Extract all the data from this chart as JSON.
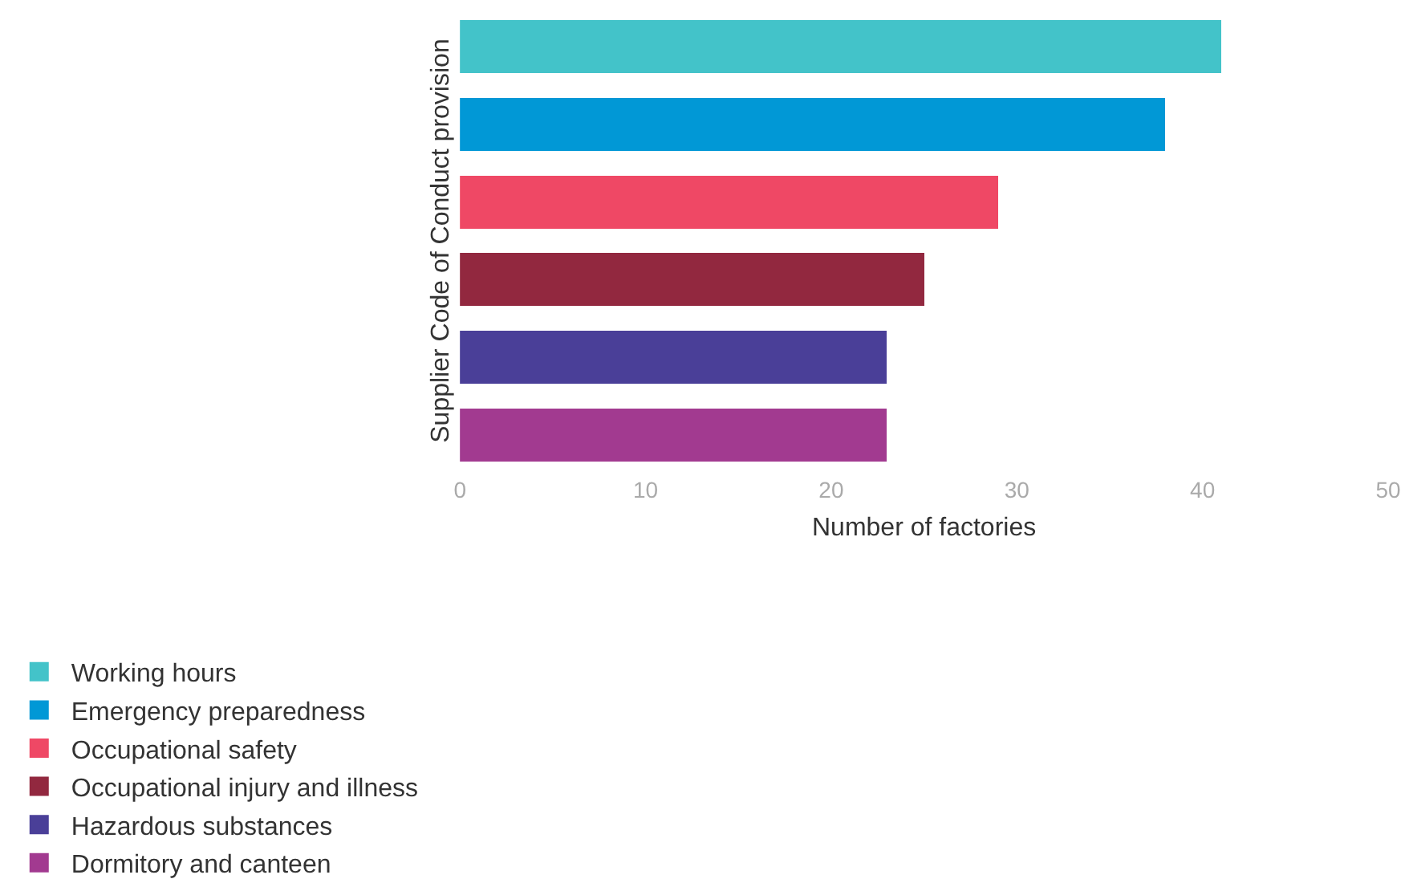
{
  "chart_data": {
    "type": "bar",
    "orientation": "horizontal",
    "ylabel": "Supplier Code of Conduct provision",
    "xlabel": "Number of factories",
    "categories": [
      null,
      null,
      null,
      null,
      null,
      null
    ],
    "series": [
      {
        "name": "Working hours",
        "color": "#43c3c9",
        "values": [
          41,
          null,
          null,
          null,
          null,
          null
        ]
      },
      {
        "name": "Emergency preparedness",
        "color": "#0198d6",
        "values": [
          null,
          38,
          null,
          null,
          null,
          null
        ]
      },
      {
        "name": "Occupational safety",
        "color": "#ef4865",
        "values": [
          null,
          null,
          29,
          null,
          null,
          null
        ]
      },
      {
        "name": "Occupational injury and illness",
        "color": "#92283f",
        "values": [
          null,
          null,
          null,
          25,
          null,
          null
        ]
      },
      {
        "name": "Hazardous substances",
        "color": "#4a3f98",
        "values": [
          null,
          null,
          null,
          null,
          23,
          null
        ]
      },
      {
        "name": "Dormitory and canteen",
        "color": "#a23a90",
        "values": [
          null,
          null,
          null,
          null,
          null,
          23
        ]
      }
    ],
    "stacked": true,
    "xlim": [
      0,
      50
    ],
    "xticks": [
      0,
      10,
      20,
      30,
      40,
      50
    ],
    "tick_labels": "x",
    "legend": "bottom"
  }
}
